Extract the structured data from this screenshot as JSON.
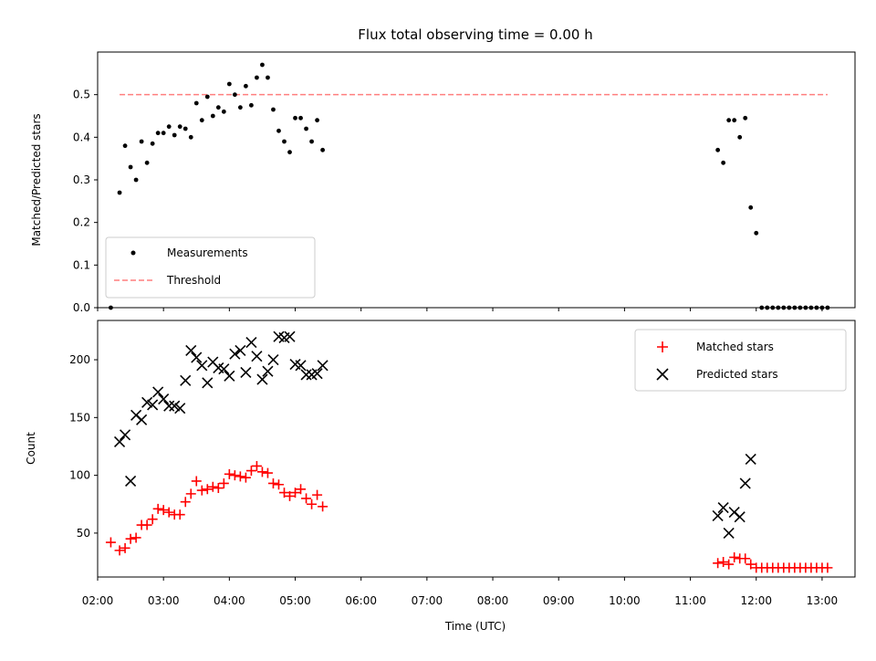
{
  "chart_data": [
    {
      "type": "scatter",
      "title": "Flux total observing time = 0.00 h",
      "xlabel": "",
      "ylabel": "Matched/Predicted stars",
      "xlim": [
        "02:00",
        "13:30"
      ],
      "ylim": [
        0,
        0.6
      ],
      "yticks": [
        0.0,
        0.1,
        0.2,
        0.3,
        0.4,
        0.5
      ],
      "ytick_labels": [
        "0.0",
        "0.1",
        "0.2",
        "0.3",
        "0.4",
        "0.5"
      ],
      "grid": false,
      "legend_position": "bottom-left",
      "series": [
        {
          "name": "Measurements",
          "kind": "scatter",
          "marker": "dot",
          "color": "#000000",
          "x": [
            "02:12",
            "02:20",
            "02:25",
            "02:30",
            "02:35",
            "02:40",
            "02:45",
            "02:50",
            "02:55",
            "03:00",
            "03:05",
            "03:10",
            "03:15",
            "03:20",
            "03:25",
            "03:30",
            "03:35",
            "03:40",
            "03:45",
            "03:50",
            "03:55",
            "04:00",
            "04:05",
            "04:10",
            "04:15",
            "04:20",
            "04:25",
            "04:30",
            "04:35",
            "04:40",
            "04:45",
            "04:50",
            "04:55",
            "05:00",
            "05:05",
            "05:10",
            "05:15",
            "05:20",
            "05:25",
            "11:25",
            "11:30",
            "11:35",
            "11:40",
            "11:45",
            "11:50",
            "11:55",
            "12:00",
            "12:05",
            "12:10",
            "12:15",
            "12:20",
            "12:25",
            "12:30",
            "12:35",
            "12:40",
            "12:45",
            "12:50",
            "12:55",
            "13:00",
            "13:05"
          ],
          "y": [
            0.0,
            0.27,
            0.38,
            0.33,
            0.3,
            0.39,
            0.34,
            0.385,
            0.41,
            0.41,
            0.425,
            0.405,
            0.425,
            0.42,
            0.4,
            0.48,
            0.44,
            0.495,
            0.45,
            0.47,
            0.46,
            0.525,
            0.5,
            0.47,
            0.52,
            0.475,
            0.54,
            0.57,
            0.54,
            0.465,
            0.415,
            0.39,
            0.365,
            0.445,
            0.445,
            0.42,
            0.39,
            0.44,
            0.37,
            0.37,
            0.34,
            0.44,
            0.44,
            0.4,
            0.445,
            0.235,
            0.175,
            0.0,
            0.0,
            0.0,
            0.0,
            0.0,
            0.0,
            0.0,
            0.0,
            0.0,
            0.0,
            0.0,
            0.0,
            0.0
          ]
        },
        {
          "name": "Threshold",
          "kind": "line",
          "style": "dashed",
          "color": "#ff7f7f",
          "x": [
            "02:20",
            "13:05"
          ],
          "y": [
            0.5,
            0.5
          ]
        }
      ]
    },
    {
      "type": "scatter",
      "title": "",
      "xlabel": "Time (UTC)",
      "ylabel": "Count",
      "xlim": [
        "02:00",
        "13:30"
      ],
      "ylim": [
        12,
        234
      ],
      "yticks": [
        50,
        100,
        150,
        200
      ],
      "ytick_labels": [
        "50",
        "100",
        "150",
        "200"
      ],
      "xticks": [
        "02:00",
        "03:00",
        "04:00",
        "05:00",
        "06:00",
        "07:00",
        "08:00",
        "09:00",
        "10:00",
        "11:00",
        "12:00",
        "13:00"
      ],
      "grid": false,
      "legend_position": "top-right",
      "series": [
        {
          "name": "Matched stars",
          "marker": "plus",
          "color": "#ff0000",
          "x": [
            "02:12",
            "02:20",
            "02:25",
            "02:30",
            "02:35",
            "02:40",
            "02:45",
            "02:50",
            "02:55",
            "03:00",
            "03:05",
            "03:10",
            "03:15",
            "03:20",
            "03:25",
            "03:30",
            "03:35",
            "03:40",
            "03:45",
            "03:50",
            "03:55",
            "04:00",
            "04:05",
            "04:10",
            "04:15",
            "04:20",
            "04:25",
            "04:30",
            "04:35",
            "04:40",
            "04:45",
            "04:50",
            "04:55",
            "05:00",
            "05:05",
            "05:10",
            "05:15",
            "05:20",
            "05:25",
            "11:25",
            "11:30",
            "11:35",
            "11:40",
            "11:45",
            "11:50",
            "11:55",
            "12:00",
            "12:05",
            "12:10",
            "12:15",
            "12:20",
            "12:25",
            "12:30",
            "12:35",
            "12:40",
            "12:45",
            "12:50",
            "12:55",
            "13:00",
            "13:05"
          ],
          "y": [
            42,
            35,
            37,
            45,
            46,
            57,
            57,
            62,
            71,
            70,
            68,
            66,
            66,
            77,
            84,
            95,
            87,
            88,
            90,
            89,
            93,
            101,
            100,
            99,
            98,
            104,
            108,
            103,
            102,
            93,
            92,
            85,
            82,
            85,
            88,
            80,
            75,
            83,
            73,
            24,
            25,
            23,
            29,
            28,
            28,
            23,
            20,
            20,
            20,
            20,
            20,
            20,
            20,
            20,
            20,
            20,
            20,
            20,
            20,
            20
          ]
        },
        {
          "name": "Predicted stars",
          "marker": "x",
          "color": "#000000",
          "x": [
            "02:20",
            "02:25",
            "02:30",
            "02:35",
            "02:40",
            "02:45",
            "02:50",
            "02:55",
            "03:00",
            "03:05",
            "03:10",
            "03:15",
            "03:20",
            "03:25",
            "03:30",
            "03:35",
            "03:40",
            "03:45",
            "03:50",
            "03:55",
            "04:00",
            "04:05",
            "04:10",
            "04:15",
            "04:20",
            "04:25",
            "04:30",
            "04:35",
            "04:40",
            "04:45",
            "04:50",
            "04:55",
            "05:00",
            "05:05",
            "05:10",
            "05:15",
            "05:20",
            "05:25",
            "11:25",
            "11:30",
            "11:35",
            "11:40",
            "11:45",
            "11:50",
            "11:55"
          ],
          "y": [
            129,
            135,
            95,
            152,
            148,
            163,
            161,
            172,
            166,
            160,
            160,
            158,
            182,
            208,
            202,
            195,
            180,
            198,
            193,
            192,
            186,
            205,
            208,
            189,
            215,
            203,
            183,
            190,
            200,
            220,
            219,
            220,
            196,
            195,
            187,
            187,
            188,
            195,
            65,
            72,
            50,
            68,
            64,
            93,
            114
          ]
        }
      ]
    }
  ],
  "x_tick_labels": [
    "02:00",
    "03:00",
    "04:00",
    "05:00",
    "06:00",
    "07:00",
    "08:00",
    "09:00",
    "10:00",
    "11:00",
    "12:00",
    "13:00"
  ]
}
